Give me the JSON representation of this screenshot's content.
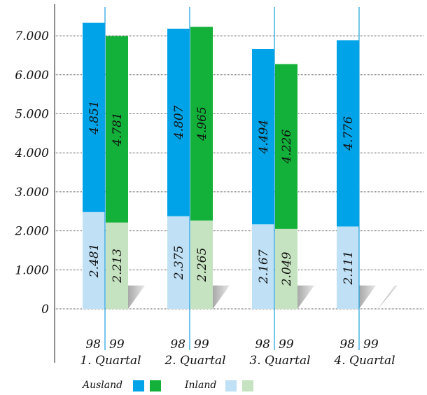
{
  "chart_data": {
    "type": "bar",
    "stacked": true,
    "title": "",
    "xlabel": "",
    "ylabel": "",
    "ylim": [
      0,
      7500
    ],
    "y_ticks": [
      "0",
      "1.000",
      "2.000",
      "3.000",
      "4.000",
      "5.000",
      "6.000",
      "7.000"
    ],
    "y_tick_values": [
      0,
      1000,
      2000,
      3000,
      4000,
      5000,
      6000,
      7000
    ],
    "grid": true,
    "categories": [
      "1. Quartal",
      "2. Quartal",
      "3. Quartal",
      "4. Quartal"
    ],
    "year_labels": [
      "98",
      "99"
    ],
    "series": [
      {
        "name": "Inland",
        "colors": {
          "98": "#bfe0f5",
          "99": "#c6e3c1"
        },
        "values": {
          "98": [
            2481,
            2375,
            2167,
            2111
          ],
          "99": [
            2213,
            2265,
            2049,
            null
          ]
        },
        "labels": {
          "98": [
            "2.481",
            "2.375",
            "2.167",
            "2.111"
          ],
          "99": [
            "2.213",
            "2.265",
            "2.049",
            ""
          ]
        }
      },
      {
        "name": "Ausland",
        "colors": {
          "98": "#00a3e8",
          "99": "#13b13a"
        },
        "values": {
          "98": [
            4851,
            4807,
            4494,
            4776
          ],
          "99": [
            4781,
            4965,
            4226,
            null
          ]
        },
        "labels": {
          "98": [
            "4.851",
            "4.807",
            "4.494",
            "4.776"
          ],
          "99": [
            "4.781",
            "4.965",
            "4.226",
            ""
          ]
        }
      }
    ],
    "legend_position": "bottom-left"
  },
  "legend": {
    "ausland_label": "Ausland",
    "inland_label": "Inland",
    "colors": {
      "ausland_98": "#00a3e8",
      "ausland_99": "#13b13a",
      "inland_98": "#bfe0f5",
      "inland_99": "#c6e3c1"
    }
  },
  "colors": {
    "divider": "#1a9fde",
    "grid": "#555555",
    "shadow": "#cccccc"
  }
}
